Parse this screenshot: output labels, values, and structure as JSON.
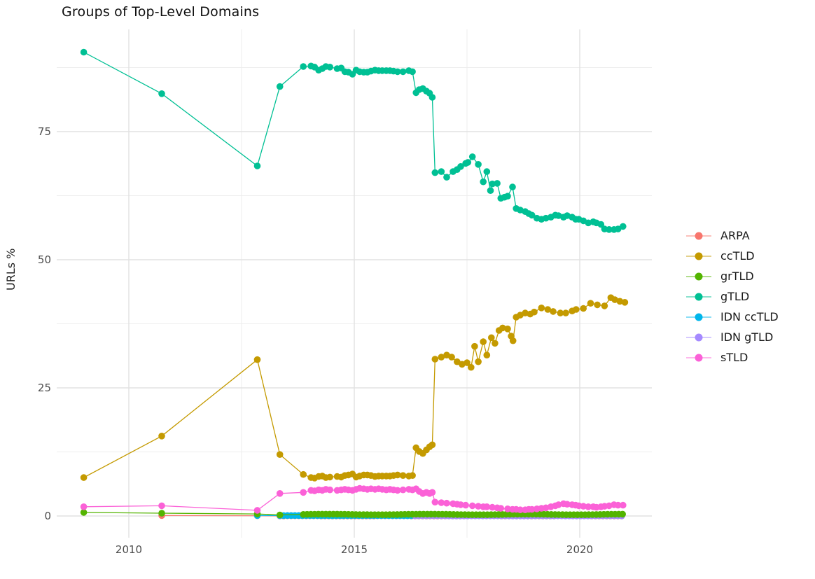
{
  "chart_data": {
    "type": "line",
    "title": "Groups of Top-Level Domains",
    "xlabel": "",
    "ylabel": "URLs %",
    "x_axis": {
      "range": [
        2008.4,
        2021.6
      ],
      "ticks": [
        {
          "v": 2010,
          "label": "2010"
        },
        {
          "v": 2015,
          "label": "2015"
        },
        {
          "v": 2020,
          "label": "2020"
        }
      ],
      "minor": [
        2012.5,
        2017.5
      ]
    },
    "y_axis": {
      "range": [
        -4.3,
        95.3
      ],
      "ticks": [
        {
          "v": 0,
          "label": "0"
        },
        {
          "v": 25,
          "label": "25"
        },
        {
          "v": 50,
          "label": "50"
        },
        {
          "v": 75,
          "label": "75"
        }
      ],
      "minor": [
        12.5,
        37.5,
        62.5,
        87.5
      ]
    },
    "grid": true,
    "legend_position": "right",
    "series": [
      {
        "name": "ARPA",
        "color": "#F8766D",
        "z": 1,
        "points": [
          [
            2010.73,
            0.1
          ],
          [
            2012.85,
            0.05
          ]
        ],
        "band": {
          "from": 2013.35,
          "to": 2021.0,
          "step": 0.0833,
          "value": 0.03,
          "amp": 0.01,
          "period": 2.0
        }
      },
      {
        "name": "ccTLD",
        "color": "#C49A00",
        "z": 5,
        "points": [
          [
            2009.0,
            7.5
          ],
          [
            2010.73,
            15.6
          ],
          [
            2012.85,
            30.5
          ],
          [
            2013.35,
            12.0
          ],
          [
            2013.87,
            8.1
          ],
          [
            2014.04,
            7.5
          ],
          [
            2014.12,
            7.4
          ],
          [
            2014.21,
            7.7
          ],
          [
            2014.29,
            7.8
          ],
          [
            2014.37,
            7.5
          ],
          [
            2014.46,
            7.6
          ],
          [
            2014.62,
            7.7
          ],
          [
            2014.71,
            7.6
          ],
          [
            2014.79,
            7.9
          ],
          [
            2014.87,
            8.0
          ],
          [
            2014.96,
            8.2
          ],
          [
            2015.04,
            7.6
          ],
          [
            2015.12,
            7.8
          ],
          [
            2015.21,
            8.0
          ],
          [
            2015.29,
            8.0
          ],
          [
            2015.37,
            7.9
          ],
          [
            2015.46,
            7.7
          ],
          [
            2015.54,
            7.8
          ],
          [
            2015.62,
            7.8
          ],
          [
            2015.71,
            7.8
          ],
          [
            2015.79,
            7.8
          ],
          [
            2015.87,
            7.9
          ],
          [
            2015.96,
            8.0
          ],
          [
            2016.08,
            7.9
          ],
          [
            2016.21,
            7.8
          ],
          [
            2016.29,
            7.9
          ],
          [
            2016.37,
            13.3
          ],
          [
            2016.44,
            12.6
          ],
          [
            2016.52,
            12.2
          ],
          [
            2016.6,
            12.9
          ],
          [
            2016.67,
            13.5
          ],
          [
            2016.73,
            13.9
          ],
          [
            2016.79,
            30.6
          ],
          [
            2016.93,
            31.0
          ],
          [
            2017.05,
            31.4
          ],
          [
            2017.16,
            31.0
          ],
          [
            2017.28,
            30.1
          ],
          [
            2017.39,
            29.6
          ],
          [
            2017.5,
            29.9
          ],
          [
            2017.59,
            29.0
          ],
          [
            2017.67,
            33.1
          ],
          [
            2017.75,
            30.1
          ],
          [
            2017.86,
            34.0
          ],
          [
            2017.94,
            31.4
          ],
          [
            2018.04,
            34.8
          ],
          [
            2018.12,
            33.7
          ],
          [
            2018.21,
            36.2
          ],
          [
            2018.29,
            36.7
          ],
          [
            2018.4,
            36.5
          ],
          [
            2018.48,
            35.1
          ],
          [
            2018.52,
            34.2
          ],
          [
            2018.59,
            38.8
          ],
          [
            2018.68,
            39.2
          ],
          [
            2018.79,
            39.6
          ],
          [
            2018.9,
            39.4
          ],
          [
            2018.99,
            39.8
          ],
          [
            2019.15,
            40.6
          ],
          [
            2019.29,
            40.3
          ],
          [
            2019.41,
            39.9
          ],
          [
            2019.57,
            39.6
          ],
          [
            2019.69,
            39.6
          ],
          [
            2019.83,
            40.0
          ],
          [
            2019.92,
            40.3
          ],
          [
            2020.08,
            40.5
          ],
          [
            2020.24,
            41.5
          ],
          [
            2020.39,
            41.2
          ],
          [
            2020.55,
            41.0
          ],
          [
            2020.69,
            42.6
          ],
          [
            2020.78,
            42.2
          ],
          [
            2020.89,
            41.9
          ],
          [
            2021.0,
            41.7
          ]
        ],
        "band": null
      },
      {
        "name": "grTLD",
        "color": "#53B400",
        "z": 4,
        "points": [
          [
            2009.0,
            0.7
          ],
          [
            2010.73,
            0.55
          ],
          [
            2012.85,
            0.4
          ],
          [
            2013.35,
            0.2
          ]
        ],
        "band": {
          "from": 2013.87,
          "to": 2021.0,
          "step": 0.0833,
          "value": 0.3,
          "amp": 0.06,
          "period": 2.2
        }
      },
      {
        "name": "gTLD",
        "color": "#00C094",
        "z": 7,
        "points": [
          [
            2009.0,
            90.5
          ],
          [
            2010.73,
            82.4
          ],
          [
            2012.85,
            68.3
          ],
          [
            2013.35,
            83.8
          ],
          [
            2013.87,
            87.7
          ],
          [
            2014.04,
            87.8
          ],
          [
            2014.12,
            87.6
          ],
          [
            2014.21,
            87.0
          ],
          [
            2014.29,
            87.3
          ],
          [
            2014.37,
            87.7
          ],
          [
            2014.46,
            87.6
          ],
          [
            2014.62,
            87.3
          ],
          [
            2014.71,
            87.4
          ],
          [
            2014.79,
            86.7
          ],
          [
            2014.87,
            86.6
          ],
          [
            2014.96,
            86.2
          ],
          [
            2015.04,
            87.0
          ],
          [
            2015.12,
            86.7
          ],
          [
            2015.21,
            86.6
          ],
          [
            2015.29,
            86.6
          ],
          [
            2015.37,
            86.8
          ],
          [
            2015.46,
            87.0
          ],
          [
            2015.54,
            86.9
          ],
          [
            2015.62,
            86.9
          ],
          [
            2015.71,
            86.9
          ],
          [
            2015.79,
            86.9
          ],
          [
            2015.87,
            86.8
          ],
          [
            2015.96,
            86.7
          ],
          [
            2016.08,
            86.7
          ],
          [
            2016.21,
            86.9
          ],
          [
            2016.29,
            86.7
          ],
          [
            2016.37,
            82.6
          ],
          [
            2016.44,
            83.2
          ],
          [
            2016.52,
            83.4
          ],
          [
            2016.6,
            82.9
          ],
          [
            2016.67,
            82.5
          ],
          [
            2016.73,
            81.7
          ],
          [
            2016.79,
            67.0
          ],
          [
            2016.93,
            67.2
          ],
          [
            2017.05,
            66.1
          ],
          [
            2017.19,
            67.2
          ],
          [
            2017.28,
            67.6
          ],
          [
            2017.36,
            68.2
          ],
          [
            2017.47,
            68.8
          ],
          [
            2017.52,
            69.0
          ],
          [
            2017.62,
            70.1
          ],
          [
            2017.75,
            68.6
          ],
          [
            2017.86,
            65.2
          ],
          [
            2017.94,
            67.2
          ],
          [
            2018.02,
            63.5
          ],
          [
            2018.06,
            64.8
          ],
          [
            2018.17,
            64.9
          ],
          [
            2018.25,
            62.0
          ],
          [
            2018.33,
            62.2
          ],
          [
            2018.4,
            62.4
          ],
          [
            2018.51,
            64.2
          ],
          [
            2018.59,
            60.0
          ],
          [
            2018.68,
            59.7
          ],
          [
            2018.79,
            59.4
          ],
          [
            2018.87,
            59.0
          ],
          [
            2018.94,
            58.7
          ],
          [
            2019.05,
            58.1
          ],
          [
            2019.15,
            57.9
          ],
          [
            2019.25,
            58.1
          ],
          [
            2019.36,
            58.3
          ],
          [
            2019.46,
            58.7
          ],
          [
            2019.53,
            58.6
          ],
          [
            2019.64,
            58.3
          ],
          [
            2019.72,
            58.6
          ],
          [
            2019.83,
            58.3
          ],
          [
            2019.91,
            57.9
          ],
          [
            2019.98,
            57.9
          ],
          [
            2020.08,
            57.6
          ],
          [
            2020.19,
            57.2
          ],
          [
            2020.3,
            57.4
          ],
          [
            2020.37,
            57.2
          ],
          [
            2020.47,
            56.9
          ],
          [
            2020.55,
            56.0
          ],
          [
            2020.65,
            55.9
          ],
          [
            2020.76,
            55.9
          ],
          [
            2020.85,
            56.0
          ],
          [
            2020.96,
            56.5
          ]
        ],
        "band": null
      },
      {
        "name": "IDN ccTLD",
        "color": "#00B6EB",
        "z": 2,
        "points": [
          [
            2012.85,
            0.1
          ]
        ],
        "band": {
          "from": 2013.35,
          "to": 2021.0,
          "step": 0.0833,
          "value": 0.08,
          "amp": 0.02,
          "period": 1.6
        }
      },
      {
        "name": "IDN gTLD",
        "color": "#A58AFF",
        "z": 3,
        "points": [],
        "band": {
          "from": 2016.35,
          "to": 2021.0,
          "step": 0.0833,
          "value": 0.04,
          "amp": 0.02,
          "period": 1.3
        }
      },
      {
        "name": "sTLD",
        "color": "#FB61D7",
        "z": 6,
        "points": [
          [
            2009.0,
            1.8
          ],
          [
            2010.73,
            2.0
          ],
          [
            2012.85,
            1.1
          ],
          [
            2013.35,
            4.4
          ],
          [
            2013.87,
            4.6
          ],
          [
            2014.04,
            5.0
          ],
          [
            2014.12,
            4.9
          ],
          [
            2014.21,
            5.1
          ],
          [
            2014.29,
            5.0
          ],
          [
            2014.37,
            5.2
          ],
          [
            2014.46,
            5.1
          ],
          [
            2014.62,
            5.0
          ],
          [
            2014.71,
            5.1
          ],
          [
            2014.79,
            5.2
          ],
          [
            2014.87,
            5.1
          ],
          [
            2014.96,
            5.0
          ],
          [
            2015.04,
            5.2
          ],
          [
            2015.12,
            5.4
          ],
          [
            2015.21,
            5.3
          ],
          [
            2015.29,
            5.2
          ],
          [
            2015.37,
            5.3
          ],
          [
            2015.46,
            5.2
          ],
          [
            2015.54,
            5.3
          ],
          [
            2015.62,
            5.2
          ],
          [
            2015.71,
            5.1
          ],
          [
            2015.79,
            5.2
          ],
          [
            2015.87,
            5.1
          ],
          [
            2015.96,
            5.0
          ],
          [
            2016.08,
            5.1
          ],
          [
            2016.21,
            5.2
          ],
          [
            2016.29,
            5.1
          ],
          [
            2016.37,
            5.3
          ],
          [
            2016.44,
            4.8
          ],
          [
            2016.52,
            4.4
          ],
          [
            2016.6,
            4.6
          ],
          [
            2016.67,
            4.4
          ],
          [
            2016.73,
            4.6
          ],
          [
            2016.79,
            2.7
          ],
          [
            2016.93,
            2.6
          ],
          [
            2017.05,
            2.5
          ],
          [
            2017.19,
            2.4
          ],
          [
            2017.28,
            2.3
          ],
          [
            2017.36,
            2.2
          ],
          [
            2017.47,
            2.1
          ],
          [
            2017.62,
            2.0
          ],
          [
            2017.75,
            1.9
          ],
          [
            2017.86,
            1.8
          ],
          [
            2017.94,
            1.8
          ],
          [
            2018.06,
            1.7
          ],
          [
            2018.17,
            1.6
          ],
          [
            2018.25,
            1.5
          ],
          [
            2018.4,
            1.4
          ],
          [
            2018.51,
            1.3
          ],
          [
            2018.59,
            1.3
          ],
          [
            2018.68,
            1.2
          ],
          [
            2018.79,
            1.2
          ],
          [
            2018.87,
            1.3
          ],
          [
            2018.94,
            1.3
          ],
          [
            2019.05,
            1.4
          ],
          [
            2019.15,
            1.5
          ],
          [
            2019.25,
            1.6
          ],
          [
            2019.36,
            1.8
          ],
          [
            2019.46,
            2.0
          ],
          [
            2019.53,
            2.2
          ],
          [
            2019.64,
            2.4
          ],
          [
            2019.72,
            2.3
          ],
          [
            2019.83,
            2.2
          ],
          [
            2019.91,
            2.1
          ],
          [
            2019.98,
            2.0
          ],
          [
            2020.08,
            1.9
          ],
          [
            2020.19,
            1.8
          ],
          [
            2020.3,
            1.8
          ],
          [
            2020.37,
            1.7
          ],
          [
            2020.47,
            1.8
          ],
          [
            2020.55,
            1.9
          ],
          [
            2020.65,
            2.0
          ],
          [
            2020.76,
            2.2
          ],
          [
            2020.85,
            2.1
          ],
          [
            2020.96,
            2.1
          ]
        ],
        "band": null
      }
    ]
  }
}
